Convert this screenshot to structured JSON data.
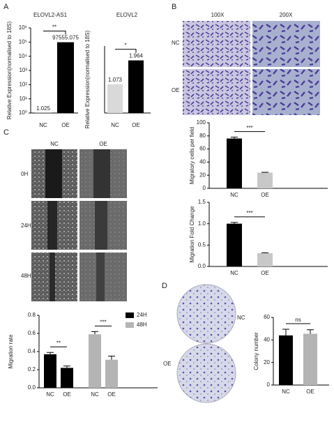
{
  "figure": {
    "panels": [
      "A",
      "B",
      "C",
      "D"
    ],
    "transwell": {
      "columns": [
        "100X",
        "200X"
      ],
      "rows": [
        "NC",
        "OE"
      ]
    },
    "wound": {
      "columns": [
        "NC",
        "OE"
      ],
      "rows": [
        "0H",
        "24H",
        "48H"
      ]
    },
    "colony": {
      "rows": [
        "NC",
        "OE"
      ]
    }
  },
  "chart_data": [
    {
      "type": "bar",
      "title": "ELOVL2-AS1",
      "y_label": "Relative Expression(normalised to 18S)",
      "log_scale": true,
      "show_values": true,
      "categories": [
        "NC",
        "OE"
      ],
      "values": [
        1.025,
        97555.075
      ],
      "colors": [
        "#d9d9d9",
        "#000000"
      ],
      "ylim": [
        1,
        1000000
      ],
      "yticks": [
        {
          "value": 1,
          "label": "10⁰"
        },
        {
          "value": 10,
          "label": "10¹"
        },
        {
          "value": 100,
          "label": "10²"
        },
        {
          "value": 1000,
          "label": "10³"
        },
        {
          "value": 10000,
          "label": "10⁴"
        },
        {
          "value": 100000,
          "label": "10⁵"
        },
        {
          "value": 1000000,
          "label": "10⁶"
        }
      ],
      "annotations": [
        "**"
      ]
    },
    {
      "type": "bar",
      "title": "ELOVL2",
      "y_label": "Relative Expression(normalised to 18S)",
      "show_values": true,
      "categories": [
        "NC",
        "OE"
      ],
      "values": [
        1.073,
        1.964
      ],
      "colors": [
        "#d9d9d9",
        "#000000"
      ],
      "ylim": [
        0,
        2.5
      ],
      "annotations": [
        "*"
      ]
    },
    {
      "type": "bar",
      "y_label": "Migratory cells per field",
      "categories": [
        "NC",
        "OE"
      ],
      "values": [
        76,
        24
      ],
      "errors": [
        2,
        0.5
      ],
      "colors": [
        "#000000",
        "#c8c8c8"
      ],
      "ylim": [
        0,
        100
      ],
      "yticks": [
        0,
        20,
        40,
        60,
        80,
        100
      ],
      "annotations": [
        "***"
      ]
    },
    {
      "type": "bar",
      "y_label": "Migration Fold Change",
      "categories": [
        "NC",
        "OE"
      ],
      "values": [
        1.0,
        0.31
      ],
      "errors": [
        0.03,
        0.01
      ],
      "colors": [
        "#000000",
        "#c8c8c8"
      ],
      "ylim": [
        0,
        1.5
      ],
      "yticks": [
        {
          "value": 0,
          "label": "0.0"
        },
        0.5,
        {
          "value": 1,
          "label": "1.0"
        },
        1.5
      ],
      "annotations": [
        "***"
      ]
    },
    {
      "type": "bar",
      "y_label": "Migration rate",
      "categories": [
        "NC",
        "OE",
        "NC",
        "OE"
      ],
      "series": [
        {
          "name": "24H",
          "color": "#000000",
          "values": [
            0.37,
            0.22,
            null,
            null
          ],
          "errors": [
            0.02,
            0.02,
            null,
            null
          ]
        },
        {
          "name": "48H",
          "color": "#b4b4b4",
          "values": [
            null,
            null,
            0.59,
            0.31
          ],
          "errors": [
            null,
            null,
            0.03,
            0.04
          ]
        }
      ],
      "ylim": [
        0,
        0.8
      ],
      "yticks": [
        {
          "value": 0,
          "label": "0.0"
        },
        0.2,
        0.4,
        0.6,
        0.8
      ],
      "legend": "upper right",
      "annotations": [
        "**",
        "***"
      ]
    },
    {
      "type": "bar",
      "y_label": "Colony number",
      "categories": [
        "NC",
        "OE"
      ],
      "values": [
        44,
        45.5
      ],
      "errors": [
        5.5,
        3.5
      ],
      "colors": [
        "#000000",
        "#b4b4b4"
      ],
      "ylim": [
        0,
        60
      ],
      "yticks": [
        0,
        20,
        40,
        60
      ],
      "annotations": [
        "ns"
      ]
    }
  ]
}
